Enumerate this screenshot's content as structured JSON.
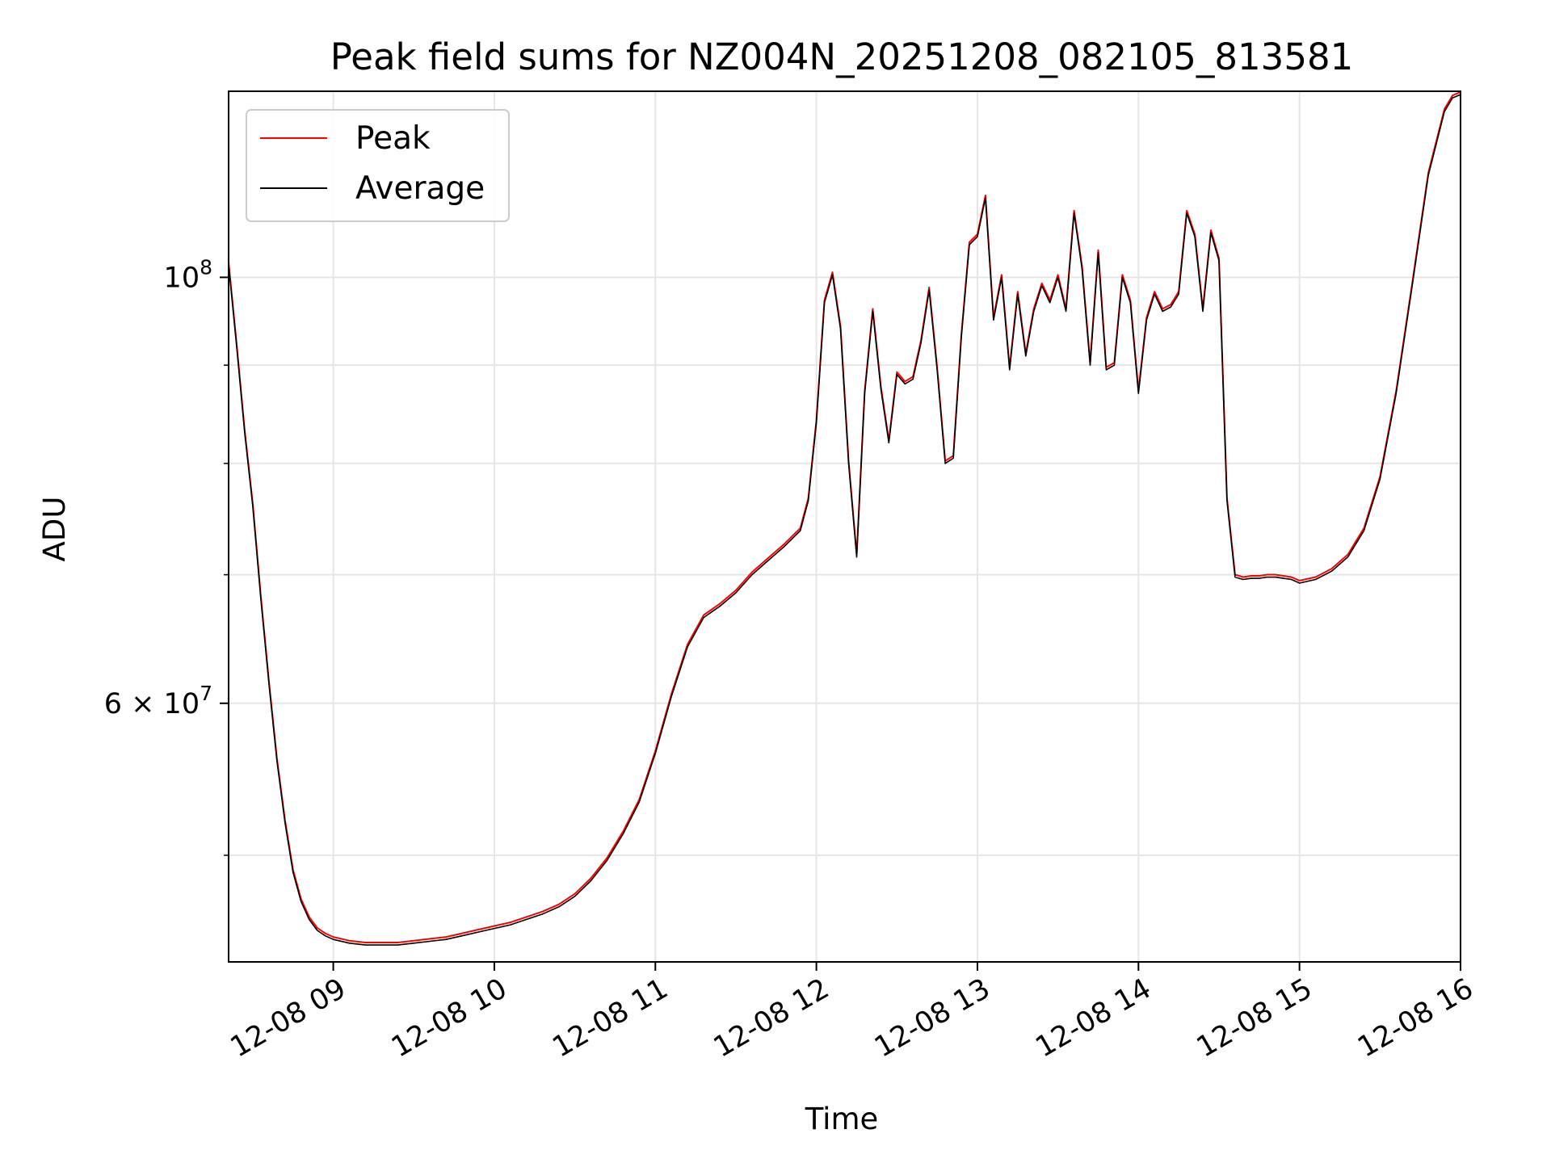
{
  "chart_data": {
    "type": "line",
    "title": "Peak field sums for NZ004N_20251208_082105_813581",
    "xlabel": "Time",
    "ylabel": "ADU",
    "y_scale": "log",
    "ylim": [
      44000000,
      125000000
    ],
    "xlim": [
      "2025-12-08 08:21",
      "2025-12-08 16:00"
    ],
    "x_ticks": [
      "12-08 09",
      "12-08 10",
      "12-08 11",
      "12-08 12",
      "12-08 13",
      "12-08 14",
      "12-08 15",
      "12-08 16"
    ],
    "y_tick_labels": [
      {
        "value": 100000000,
        "base": "10",
        "exp": "8",
        "prefix": ""
      },
      {
        "value": 60000000,
        "base": "10",
        "exp": "7",
        "prefix": "6 × "
      }
    ],
    "y_minor_ticks": [
      50000000,
      70000000,
      80000000,
      90000000
    ],
    "grid": true,
    "legend_position": "upper left",
    "series": [
      {
        "name": "Peak",
        "color": "#ff0000"
      },
      {
        "name": "Average",
        "color": "#000000"
      }
    ],
    "x": [
      "08:21",
      "08:24",
      "08:27",
      "08:30",
      "08:33",
      "08:36",
      "08:39",
      "08:42",
      "08:45",
      "08:48",
      "08:51",
      "08:54",
      "08:57",
      "09:00",
      "09:06",
      "09:12",
      "09:18",
      "09:24",
      "09:30",
      "09:36",
      "09:42",
      "09:48",
      "09:54",
      "10:00",
      "10:06",
      "10:12",
      "10:18",
      "10:24",
      "10:30",
      "10:36",
      "10:42",
      "10:48",
      "10:54",
      "11:00",
      "11:06",
      "11:12",
      "11:18",
      "11:24",
      "11:30",
      "11:36",
      "11:42",
      "11:48",
      "11:54",
      "11:57",
      "12:00",
      "12:03",
      "12:06",
      "12:09",
      "12:12",
      "12:15",
      "12:18",
      "12:21",
      "12:24",
      "12:27",
      "12:30",
      "12:33",
      "12:36",
      "12:39",
      "12:42",
      "12:45",
      "12:48",
      "12:51",
      "12:54",
      "12:57",
      "13:00",
      "13:03",
      "13:06",
      "13:09",
      "13:12",
      "13:15",
      "13:18",
      "13:21",
      "13:24",
      "13:27",
      "13:30",
      "13:33",
      "13:36",
      "13:39",
      "13:42",
      "13:45",
      "13:48",
      "13:51",
      "13:54",
      "13:57",
      "14:00",
      "14:03",
      "14:06",
      "14:09",
      "14:12",
      "14:15",
      "14:18",
      "14:21",
      "14:24",
      "14:27",
      "14:30",
      "14:33",
      "14:36",
      "14:39",
      "14:42",
      "14:45",
      "14:48",
      "14:51",
      "14:54",
      "14:57",
      "15:00",
      "15:06",
      "15:12",
      "15:18",
      "15:24",
      "15:30",
      "15:36",
      "15:42",
      "15:48",
      "15:54",
      "15:57",
      "16:00"
    ],
    "values": [
      101500000,
      92000000,
      83000000,
      76000000,
      68000000,
      61500000,
      56000000,
      52000000,
      49000000,
      47300000,
      46300000,
      45700000,
      45400000,
      45200000,
      45000000,
      44900000,
      44900000,
      44900000,
      45000000,
      45100000,
      45200000,
      45400000,
      45600000,
      45800000,
      46000000,
      46300000,
      46600000,
      47000000,
      47600000,
      48500000,
      49700000,
      51300000,
      53300000,
      56500000,
      60500000,
      64200000,
      66500000,
      67400000,
      68500000,
      70000000,
      71200000,
      72400000,
      73800000,
      76500000,
      84000000,
      97000000,
      100300000,
      94000000,
      80000000,
      71500000,
      87000000,
      96000000,
      87500000,
      82000000,
      89000000,
      88000000,
      88500000,
      92500000,
      98500000,
      89500000,
      80000000,
      80500000,
      93000000,
      104000000,
      105000000,
      110000000,
      95000000,
      100000000,
      89500000,
      98000000,
      91000000,
      96000000,
      99000000,
      97000000,
      100000000,
      96000000,
      108000000,
      101000000,
      90000000,
      103000000,
      89500000,
      90000000,
      100000000,
      97000000,
      87000000,
      95000000,
      98000000,
      96000000,
      96500000,
      98000000,
      108000000,
      105000000,
      96000000,
      105500000,
      102000000,
      76500000,
      69800000,
      69600000,
      69700000,
      69700000,
      69800000,
      69800000,
      69700000,
      69600000,
      69300000,
      69600000,
      70300000,
      71500000,
      73800000,
      78500000,
      87000000,
      99000000,
      113000000,
      122000000,
      124000000,
      124500000
    ]
  }
}
